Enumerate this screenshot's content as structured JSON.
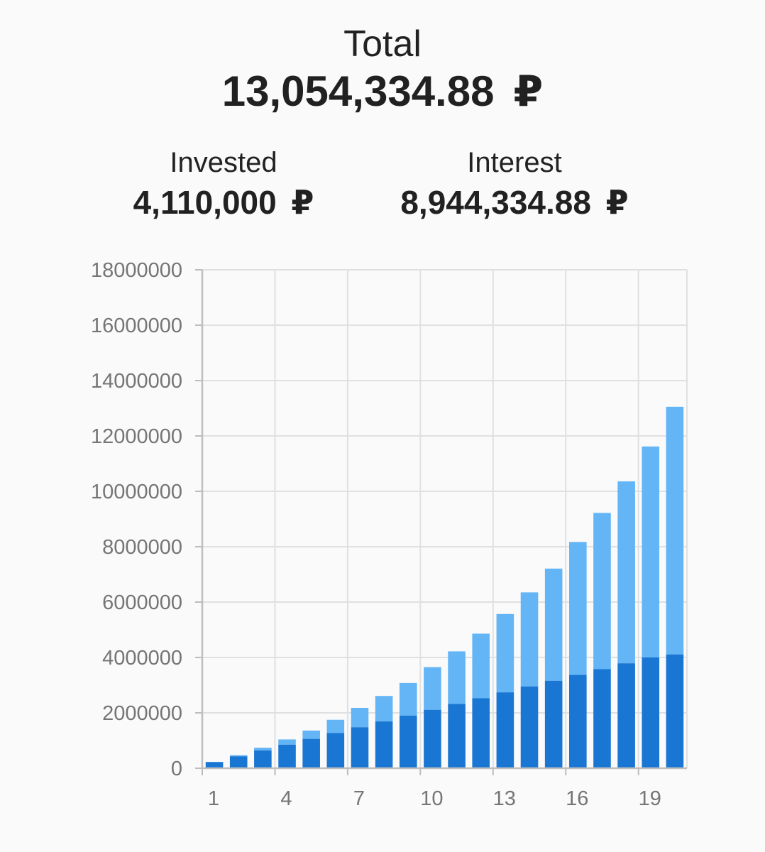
{
  "summary": {
    "total_label": "Total",
    "total_value": "13,054,334.88",
    "invested_label": "Invested",
    "invested_value": "4,110,000",
    "interest_label": "Interest",
    "interest_value": "8,944,334.88",
    "currency_symbol": "₽"
  },
  "colors": {
    "invested": "#1976d2",
    "interest": "#64b5f6",
    "grid": "#e0e0e0",
    "axis": "#bdbdbd",
    "tick_text": "#757575",
    "background": "#fafafa"
  },
  "chart_data": {
    "type": "bar",
    "stacked": true,
    "categories": [
      1,
      2,
      3,
      4,
      5,
      6,
      7,
      8,
      9,
      10,
      11,
      12,
      13,
      14,
      15,
      16,
      17,
      18,
      19,
      20
    ],
    "series": [
      {
        "values": [
          220000,
          430000,
          640000,
          850000,
          1060000,
          1270000,
          1480000,
          1690000,
          1900000,
          2110000,
          2320000,
          2530000,
          2740000,
          2950000,
          3160000,
          3370000,
          3580000,
          3790000,
          4000000,
          4110000
        ]
      },
      {
        "values": [
          10000,
          40000,
          100000,
          190000,
          300000,
          480000,
          700000,
          920000,
          1180000,
          1540000,
          1900000,
          2330000,
          2830000,
          3400000,
          4050000,
          4800000,
          5640000,
          6570000,
          7620000,
          8944334.88
        ]
      }
    ],
    "totals": [
      230000,
      470000,
      740000,
      1040000,
      1360000,
      1750000,
      2180000,
      2610000,
      3080000,
      3650000,
      4220000,
      4860000,
      5570000,
      6350000,
      7210000,
      8170000,
      9220000,
      10360000,
      11620000,
      13054334.88
    ],
    "ylim": [
      0,
      18000000
    ],
    "y_ticks": [
      0,
      2000000,
      4000000,
      6000000,
      8000000,
      10000000,
      12000000,
      14000000,
      16000000,
      18000000
    ],
    "x_tick_labels": [
      1,
      4,
      7,
      10,
      13,
      16,
      19
    ],
    "grid": true,
    "legend": "none"
  }
}
